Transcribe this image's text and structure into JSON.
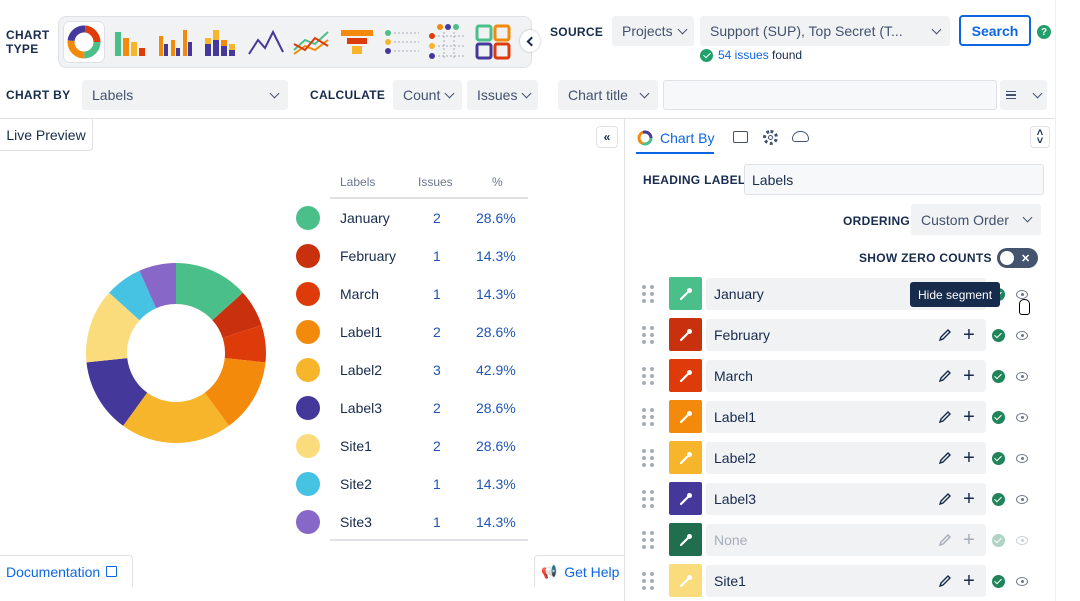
{
  "toolbar": {
    "chart_type_label": "CHART TYPE",
    "chart_types": [
      "donut",
      "bar",
      "grouped-bar",
      "stacked-bar",
      "line",
      "multi-line",
      "funnel",
      "table",
      "matrix",
      "tiles"
    ],
    "source_label": "SOURCE",
    "source_select": "Projects",
    "project_select": "Support (SUP), Top Secret (T...",
    "search_button": "Search",
    "issues_found_count": "54 issues",
    "issues_found_suffix": "found",
    "chart_by_label": "CHART BY",
    "chart_by_value": "Labels",
    "calculate_label": "CALCULATE",
    "calculate_value": "Count",
    "calculate_of": "Issues",
    "chart_title_select": "Chart title",
    "chart_title_input": ""
  },
  "preview": {
    "live_preview_tab": "Live Preview",
    "documentation_link": "Documentation",
    "get_help_button": "Get Help"
  },
  "legend": {
    "headers": {
      "label": "Labels",
      "issues": "Issues",
      "pct": "%"
    },
    "rows": [
      {
        "label": "January",
        "count": "2",
        "pct": "28.6%",
        "color": "#4bbf8a"
      },
      {
        "label": "February",
        "count": "1",
        "pct": "14.3%",
        "color": "#c9300d"
      },
      {
        "label": "March",
        "count": "1",
        "pct": "14.3%",
        "color": "#de3b0b"
      },
      {
        "label": "Label1",
        "count": "2",
        "pct": "28.6%",
        "color": "#f48a0b"
      },
      {
        "label": "Label2",
        "count": "3",
        "pct": "42.9%",
        "color": "#f7b52c"
      },
      {
        "label": "Label3",
        "count": "2",
        "pct": "28.6%",
        "color": "#44399a"
      },
      {
        "label": "Site1",
        "count": "2",
        "pct": "28.6%",
        "color": "#fbdc7d"
      },
      {
        "label": "Site2",
        "count": "1",
        "pct": "14.3%",
        "color": "#46c2e3"
      },
      {
        "label": "Site3",
        "count": "1",
        "pct": "14.3%",
        "color": "#8767c8"
      }
    ]
  },
  "chart_data": {
    "type": "pie",
    "donut": true,
    "categories": [
      "January",
      "February",
      "March",
      "Label1",
      "Label2",
      "Label3",
      "Site1",
      "Site2",
      "Site3"
    ],
    "values": [
      2,
      1,
      1,
      2,
      3,
      2,
      2,
      1,
      1
    ],
    "colors": [
      "#4bbf8a",
      "#c9300d",
      "#de3b0b",
      "#f48a0b",
      "#f7b52c",
      "#44399a",
      "#fbdc7d",
      "#46c2e3",
      "#8767c8"
    ]
  },
  "settings": {
    "tab_chart_by": "Chart By",
    "heading_label_caption": "HEADING LABEL",
    "heading_label_value": "Labels",
    "ordering_caption": "ORDERING",
    "ordering_value": "Custom Order",
    "show_zero_caption": "SHOW ZERO COUNTS",
    "tooltip": "Hide segment",
    "segments": [
      {
        "label": "January",
        "color": "#4bbf8a",
        "enabled": true
      },
      {
        "label": "February",
        "color": "#c9300d",
        "enabled": true
      },
      {
        "label": "March",
        "color": "#de3b0b",
        "enabled": true
      },
      {
        "label": "Label1",
        "color": "#f48a0b",
        "enabled": true
      },
      {
        "label": "Label2",
        "color": "#f7b52c",
        "enabled": true
      },
      {
        "label": "Label3",
        "color": "#44399a",
        "enabled": true
      },
      {
        "label": "None",
        "color": "#216e4e",
        "enabled": false
      },
      {
        "label": "Site1",
        "color": "#fbdc7d",
        "enabled": true
      }
    ]
  }
}
